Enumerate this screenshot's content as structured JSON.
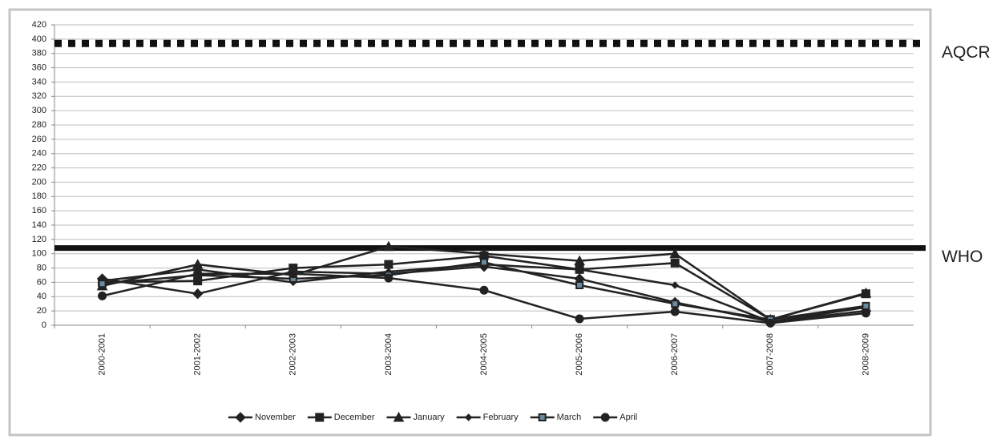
{
  "chart_data": {
    "type": "line",
    "categories": [
      "2000-2001",
      "2001-2002",
      "2002-2003",
      "2003-2004",
      "2004-2005",
      "2005-2006",
      "2006-2007",
      "2007-2008",
      "2008-2009"
    ],
    "series": [
      {
        "name": "November",
        "color": "#222222",
        "marker": "diamond",
        "values": [
          65,
          44,
          75,
          72,
          82,
          65,
          32,
          5,
          20
        ]
      },
      {
        "name": "December",
        "color": "#222222",
        "marker": "square",
        "values": [
          60,
          62,
          80,
          85,
          97,
          78,
          87,
          8,
          44
        ]
      },
      {
        "name": "January",
        "color": "#222222",
        "marker": "triangle",
        "values": [
          55,
          85,
          70,
          110,
          100,
          90,
          100,
          8,
          45
        ]
      },
      {
        "name": "February",
        "color": "#222222",
        "marker": "small-diamond",
        "values": [
          62,
          78,
          60,
          75,
          85,
          78,
          56,
          5,
          25
        ]
      },
      {
        "name": "March",
        "color": "#222222",
        "marker": "square-x",
        "values": [
          58,
          70,
          65,
          70,
          88,
          56,
          30,
          8,
          27
        ]
      },
      {
        "name": "April",
        "color": "#222222",
        "marker": "circle",
        "values": [
          41,
          72,
          72,
          66,
          49,
          9,
          19,
          3,
          17
        ]
      }
    ],
    "reference_lines": [
      {
        "label": "AQCR",
        "value": 394,
        "style": "dotted"
      },
      {
        "label": "WHO",
        "value": 108,
        "style": "solid"
      }
    ],
    "ylim": [
      0,
      420
    ],
    "yticks": [
      0,
      20,
      40,
      60,
      80,
      100,
      120,
      140,
      160,
      180,
      200,
      220,
      240,
      260,
      280,
      300,
      320,
      340,
      360,
      380,
      400,
      420
    ],
    "grid": true,
    "legend": "bottom"
  }
}
